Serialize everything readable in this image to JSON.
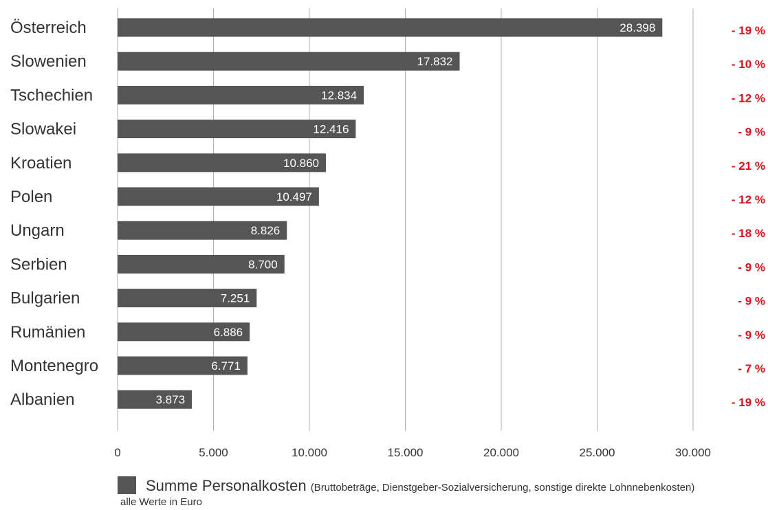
{
  "chart_data": {
    "type": "bar",
    "orientation": "horizontal",
    "categories": [
      "Österreich",
      "Slowenien",
      "Tschechien",
      "Slowakei",
      "Kroatien",
      "Polen",
      "Ungarn",
      "Serbien",
      "Bulgarien",
      "Rumänien",
      "Montenegro",
      "Albanien"
    ],
    "series": [
      {
        "name": "Summe Personalkosten",
        "values": [
          28398,
          17832,
          12834,
          12416,
          10860,
          10497,
          8826,
          8700,
          7251,
          6886,
          6771,
          3873
        ]
      }
    ],
    "value_labels": [
      "28.398",
      "17.832",
      "12.834",
      "12.416",
      "10.860",
      "10.497",
      "8.826",
      "8.700",
      "7.251",
      "6.886",
      "6.771",
      "3.873"
    ],
    "change_labels": [
      "- 19 %",
      "- 10 %",
      "- 12 %",
      "- 9 %",
      "- 21 %",
      "- 12 %",
      "- 18 %",
      "- 9 %",
      "- 9 %",
      "- 9 %",
      "- 7 %",
      "- 19 %"
    ],
    "xlim": [
      0,
      30000
    ],
    "xticks": [
      0,
      5000,
      10000,
      15000,
      20000,
      25000,
      30000
    ],
    "xtick_labels": [
      "0",
      "5.000",
      "10.000",
      "15.000",
      "20.000",
      "25.000",
      "30.000"
    ],
    "grid": true,
    "legend_position": "bottom-left",
    "bar_color": "#555555",
    "change_color": "#d7101b"
  },
  "legend": {
    "label": "Summe Personalkosten",
    "detail": "(Bruttobeträge, Dienstgeber-Sozialversicherung, sonstige direkte Lohnnebenkosten)",
    "note": "alle Werte in Euro"
  }
}
